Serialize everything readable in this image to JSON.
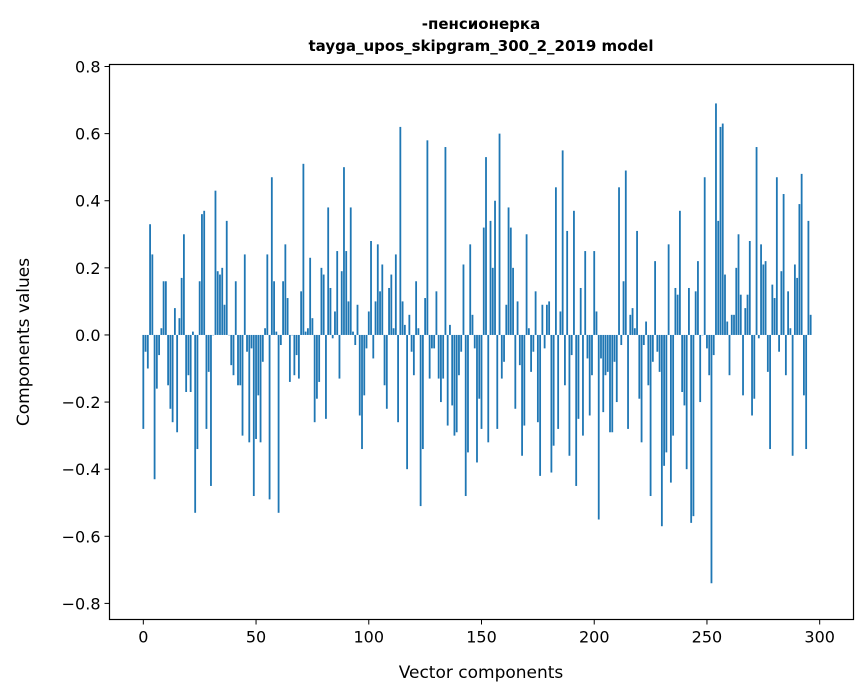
{
  "chart_data": {
    "type": "bar",
    "title_line1": "-пенсионерка",
    "title_line2": "tayga_upos_skipgram_300_2_2019 model",
    "xlabel": "Vector components",
    "ylabel": "Components values",
    "xlim": [
      -15,
      315
    ],
    "ylim": [
      -0.848,
      0.806
    ],
    "grid": false,
    "color": "#1f77b4",
    "xticks": [
      0,
      50,
      100,
      150,
      200,
      250,
      300
    ],
    "xtick_labels": [
      "0",
      "50",
      "100",
      "150",
      "200",
      "250",
      "300"
    ],
    "yticks": [
      -0.8,
      -0.6,
      -0.4,
      -0.2,
      0.0,
      0.2,
      0.4,
      0.6,
      0.8
    ],
    "ytick_labels": [
      "−0.8",
      "−0.6",
      "−0.4",
      "−0.2",
      "0.0",
      "0.2",
      "0.4",
      "0.6",
      "0.8"
    ],
    "values": [
      -0.28,
      -0.05,
      -0.1,
      0.33,
      0.24,
      -0.43,
      -0.16,
      -0.06,
      0.02,
      0.16,
      0.16,
      -0.15,
      -0.22,
      -0.26,
      0.08,
      -0.29,
      0.05,
      0.17,
      0.3,
      -0.17,
      -0.12,
      -0.17,
      0.01,
      -0.53,
      -0.34,
      0.16,
      0.36,
      0.37,
      -0.28,
      -0.11,
      -0.45,
      0.0,
      0.43,
      0.19,
      0.18,
      0.2,
      0.09,
      0.34,
      0.0,
      -0.09,
      -0.12,
      0.16,
      -0.15,
      -0.15,
      -0.3,
      0.24,
      -0.05,
      -0.32,
      -0.04,
      -0.48,
      -0.31,
      -0.18,
      -0.32,
      -0.08,
      0.02,
      0.24,
      -0.49,
      0.47,
      0.16,
      0.01,
      -0.53,
      -0.03,
      0.16,
      0.27,
      0.11,
      -0.14,
      0.0,
      -0.12,
      -0.06,
      -0.13,
      0.13,
      0.51,
      0.01,
      0.02,
      0.23,
      0.05,
      -0.26,
      -0.19,
      -0.14,
      0.2,
      0.18,
      -0.25,
      0.38,
      0.14,
      -0.01,
      0.07,
      0.25,
      -0.13,
      0.19,
      0.5,
      0.25,
      0.1,
      0.38,
      0.01,
      -0.03,
      0.09,
      -0.24,
      -0.34,
      -0.18,
      -0.04,
      0.07,
      0.28,
      -0.07,
      0.1,
      0.27,
      0.13,
      0.21,
      -0.15,
      -0.22,
      0.14,
      0.18,
      0.02,
      0.24,
      -0.26,
      0.62,
      0.1,
      0.03,
      -0.4,
      0.06,
      -0.05,
      -0.12,
      0.16,
      0.02,
      -0.51,
      -0.34,
      0.11,
      0.58,
      -0.13,
      -0.04,
      -0.04,
      0.13,
      -0.13,
      -0.2,
      -0.13,
      0.56,
      -0.27,
      0.03,
      -0.21,
      -0.3,
      -0.29,
      -0.12,
      -0.05,
      0.21,
      -0.48,
      -0.35,
      0.27,
      0.06,
      -0.04,
      -0.38,
      -0.19,
      -0.28,
      0.32,
      0.53,
      -0.32,
      0.34,
      0.2,
      0.4,
      -0.28,
      0.6,
      -0.13,
      -0.08,
      0.09,
      0.38,
      0.32,
      0.2,
      -0.22,
      0.1,
      -0.09,
      -0.36,
      -0.27,
      0.3,
      0.02,
      -0.11,
      -0.05,
      0.13,
      -0.26,
      -0.42,
      0.09,
      -0.04,
      0.09,
      0.1,
      -0.41,
      -0.33,
      0.44,
      -0.28,
      0.07,
      0.55,
      -0.15,
      0.31,
      -0.36,
      -0.06,
      0.37,
      -0.45,
      -0.25,
      0.14,
      -0.3,
      0.25,
      -0.07,
      -0.24,
      -0.12,
      0.25,
      0.07,
      -0.55,
      -0.07,
      -0.23,
      -0.12,
      -0.11,
      -0.29,
      -0.29,
      -0.08,
      -0.2,
      0.44,
      -0.03,
      0.16,
      0.49,
      -0.28,
      0.06,
      0.08,
      0.02,
      0.31,
      -0.19,
      -0.32,
      -0.03,
      0.04,
      -0.15,
      -0.48,
      -0.08,
      0.22,
      -0.05,
      -0.11,
      -0.57,
      -0.39,
      -0.35,
      0.27,
      -0.44,
      -0.3,
      0.14,
      0.12,
      0.37,
      -0.17,
      -0.21,
      -0.4,
      0.14,
      -0.56,
      -0.54,
      0.13,
      0.22,
      -0.2,
      0.0,
      0.47,
      -0.04,
      -0.12,
      -0.74,
      -0.06,
      0.69,
      0.34,
      0.62,
      0.63,
      0.18,
      0.04,
      -0.12,
      0.06,
      0.06,
      0.2,
      0.3,
      0.12,
      -0.18,
      0.08,
      0.12,
      0.28,
      -0.24,
      -0.19,
      0.56,
      -0.01,
      0.27,
      0.21,
      0.22,
      -0.11,
      -0.34,
      0.15,
      0.11,
      0.47,
      -0.05,
      0.19,
      0.42,
      -0.12,
      0.13,
      0.02,
      -0.36,
      0.21,
      0.17,
      0.39,
      0.48,
      -0.18,
      -0.34,
      0.34,
      0.06
    ]
  }
}
